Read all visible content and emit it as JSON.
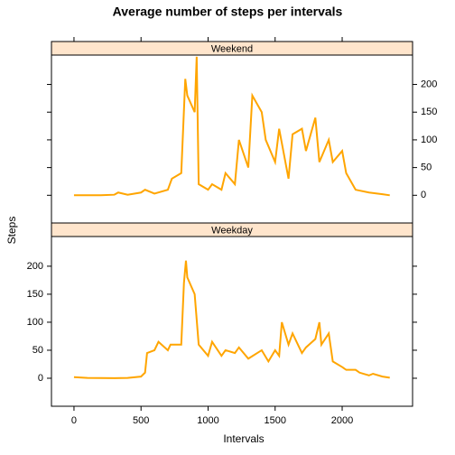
{
  "chart_data": {
    "type": "line",
    "title": "Average number of steps per intervals",
    "x_label": "Intervals",
    "y_label": "Steps",
    "xlim": [
      -168,
      2525
    ],
    "xticks": [
      0,
      500,
      1000,
      1500,
      2000
    ],
    "ylim": [
      -50,
      253
    ],
    "yticks": [
      0,
      50,
      100,
      150,
      200
    ],
    "strip_color": "#ffe5cc",
    "series": [
      {
        "name": "Weekend",
        "color": "#ffa500",
        "x": [
          0,
          100,
          200,
          300,
          330,
          400,
          500,
          530,
          600,
          700,
          730,
          800,
          830,
          845,
          900,
          915,
          930,
          1000,
          1030,
          1100,
          1130,
          1200,
          1230,
          1300,
          1330,
          1400,
          1430,
          1500,
          1530,
          1600,
          1630,
          1700,
          1730,
          1800,
          1830,
          1900,
          1930,
          2000,
          2030,
          2100,
          2200,
          2300,
          2355
        ],
        "values": [
          0,
          0,
          0,
          1,
          5,
          1,
          5,
          10,
          3,
          10,
          30,
          40,
          210,
          180,
          150,
          250,
          20,
          10,
          20,
          10,
          40,
          20,
          100,
          50,
          180,
          150,
          100,
          60,
          120,
          30,
          110,
          120,
          80,
          140,
          60,
          100,
          60,
          80,
          40,
          10,
          5,
          2,
          0
        ]
      },
      {
        "name": "Weekday",
        "color": "#ffa500",
        "x": [
          0,
          100,
          200,
          300,
          400,
          500,
          530,
          545,
          600,
          630,
          700,
          720,
          800,
          820,
          835,
          845,
          900,
          930,
          1000,
          1030,
          1100,
          1130,
          1200,
          1230,
          1300,
          1400,
          1450,
          1500,
          1530,
          1550,
          1600,
          1630,
          1700,
          1730,
          1800,
          1830,
          1845,
          1900,
          1930,
          2000,
          2030,
          2100,
          2130,
          2200,
          2230,
          2300,
          2355
        ],
        "values": [
          2,
          0.5,
          0.3,
          0.2,
          0.5,
          3,
          10,
          45,
          50,
          65,
          50,
          60,
          60,
          170,
          210,
          180,
          150,
          60,
          40,
          65,
          40,
          50,
          45,
          55,
          35,
          50,
          30,
          50,
          40,
          100,
          60,
          80,
          45,
          55,
          70,
          100,
          60,
          80,
          30,
          20,
          15,
          15,
          10,
          5,
          8,
          3,
          1
        ]
      }
    ]
  }
}
